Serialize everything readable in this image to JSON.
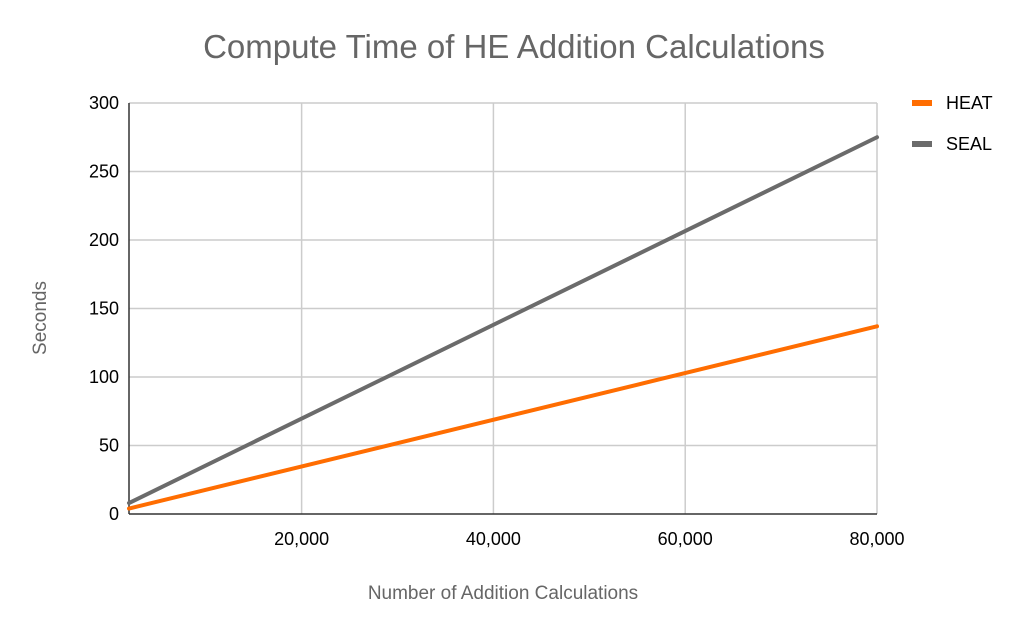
{
  "chart_data": {
    "type": "line",
    "title": "Compute Time of HE Addition Calculations",
    "xlabel": "Number of Addition Calculations",
    "ylabel": "Seconds",
    "xlim": [
      2000,
      80000
    ],
    "ylim": [
      0,
      300
    ],
    "x_ticks": [
      20000,
      40000,
      60000,
      80000
    ],
    "x_tick_labels": [
      "20,000",
      "40,000",
      "60,000",
      "80,000"
    ],
    "y_ticks": [
      0,
      50,
      100,
      150,
      200,
      250,
      300
    ],
    "y_tick_labels": [
      "0",
      "50",
      "100",
      "150",
      "200",
      "250",
      "300"
    ],
    "grid": true,
    "legend_position": "right",
    "series": [
      {
        "name": "HEAT",
        "color": "#ff6d01",
        "x": [
          2000,
          80000
        ],
        "y": [
          4,
          137
        ]
      },
      {
        "name": "SEAL",
        "color": "#6b6b6b",
        "x": [
          2000,
          80000
        ],
        "y": [
          8,
          275
        ]
      }
    ]
  }
}
